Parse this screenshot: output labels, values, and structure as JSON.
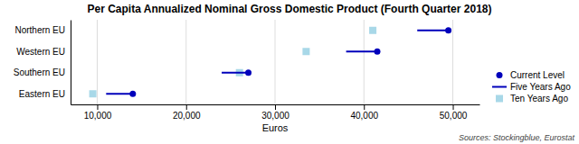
{
  "chart_data": {
    "type": "dot",
    "title": "Per Capita Annualized Nominal Gross Domestic Product (Fourth Quarter 2018)",
    "x_label": "Euros",
    "orientation": "horizontal",
    "categories": [
      "Northern EU",
      "Western EU",
      "Southern EU",
      "Eastern EU"
    ],
    "series": [
      {
        "name": "Current Level",
        "color": "#0000bb",
        "marker": "circle",
        "values": [
          49500,
          41500,
          27000,
          14000
        ]
      },
      {
        "name": "Five Years Ago",
        "color": "#0000bb",
        "line_style": "solid",
        "values": [
          46000,
          38000,
          24000,
          11000
        ]
      },
      {
        "name": "Ten Years Ago",
        "color": "#a8d8e8",
        "marker": "square",
        "values": [
          41000,
          33500,
          26000,
          9500
        ]
      }
    ],
    "xlim": [
      7000,
      53000
    ],
    "xticks": [
      {
        "value": 10000,
        "label": "10,000"
      },
      {
        "value": 20000,
        "label": "20,000"
      },
      {
        "value": 30000,
        "label": "30,000"
      },
      {
        "value": 40000,
        "label": "40,000"
      },
      {
        "value": 50000,
        "label": "50,000"
      }
    ],
    "grid": true,
    "legend": "lower right",
    "annotations": [
      "Sources: Stockingblue, Eurostat"
    ]
  }
}
